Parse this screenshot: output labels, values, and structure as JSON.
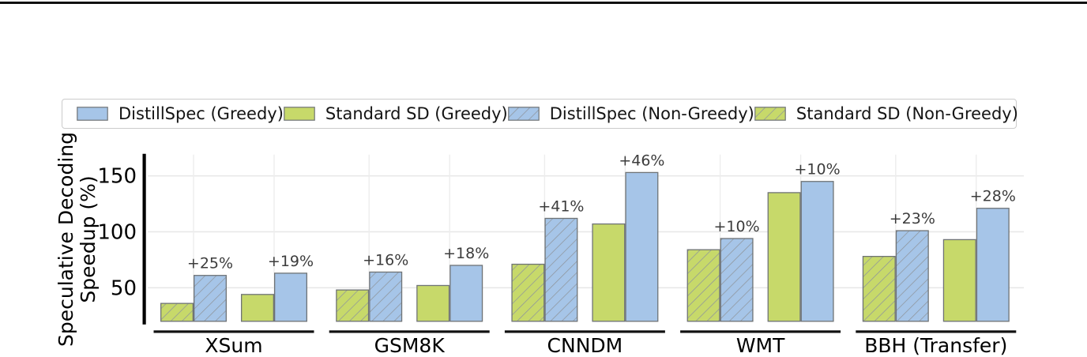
{
  "legend": {
    "items": [
      {
        "label": "DistillSpec (Greedy)",
        "color_key": "blue",
        "hatched": false
      },
      {
        "label": "Standard SD (Greedy)",
        "color_key": "green",
        "hatched": false
      },
      {
        "label": "DistillSpec (Non-Greedy)",
        "color_key": "blue",
        "hatched": true
      },
      {
        "label": "Standard SD (Non-Greedy)",
        "color_key": "green",
        "hatched": true
      }
    ]
  },
  "chart_data": {
    "type": "bar",
    "title": "",
    "ylabel_lines": [
      "Speculative Decoding",
      "Speedup (%)"
    ],
    "yticks": [
      50,
      100,
      150
    ],
    "ylim": [
      20,
      169
    ],
    "grid": true,
    "legend_position": "top",
    "categories": [
      "XSum",
      "GSM8K",
      "CNNDM",
      "WMT",
      "BBH (Transfer)"
    ],
    "series": [
      {
        "name": "Standard SD (Non-Greedy)",
        "color_key": "green",
        "hatched": true,
        "values": [
          36,
          48,
          71,
          84,
          78
        ]
      },
      {
        "name": "DistillSpec (Non-Greedy)",
        "color_key": "blue",
        "hatched": true,
        "values": [
          61,
          64,
          112,
          94,
          101
        ]
      },
      {
        "name": "Standard SD (Greedy)",
        "color_key": "green",
        "hatched": false,
        "values": [
          44,
          52,
          107,
          135,
          93
        ]
      },
      {
        "name": "DistillSpec (Greedy)",
        "color_key": "blue",
        "hatched": false,
        "values": [
          63,
          70,
          153,
          145,
          121
        ]
      }
    ],
    "annotations": {
      "non_greedy_pair": [
        "+25%",
        "+16%",
        "+41%",
        "+10%",
        "+23%"
      ],
      "greedy_pair": [
        "+19%",
        "+18%",
        "+46%",
        "+10%",
        "+28%"
      ]
    },
    "colors": {
      "blue": "#a6c5e8",
      "green": "#c7d96a",
      "bar_edge": "#6f7376",
      "hatch": "#8f959c",
      "grid": "#e8e8e8",
      "axis": "#000000",
      "annotation_text": "#3c3c3c",
      "tick_text": "#000000"
    }
  }
}
